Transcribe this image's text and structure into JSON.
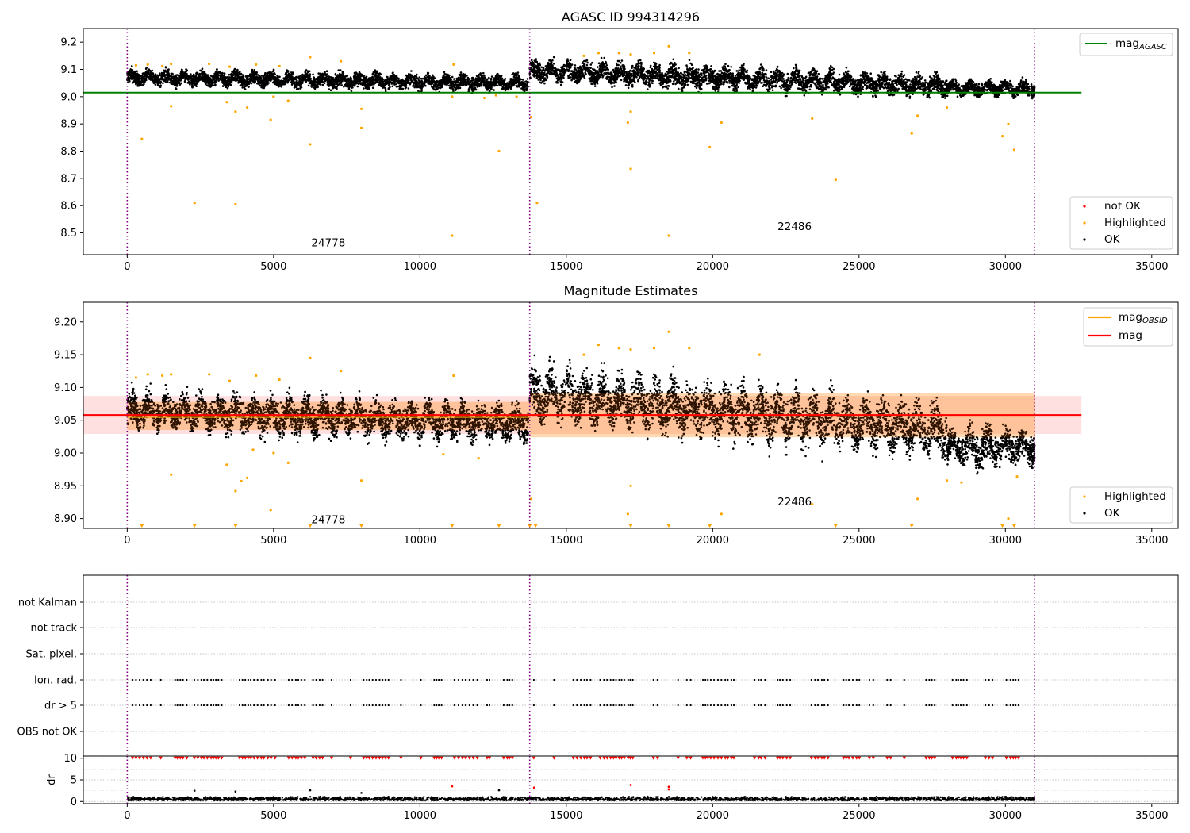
{
  "chart_data": [
    {
      "type": "scatter",
      "title": "AGASC ID 994314296",
      "xlim": [
        -1500,
        35900
      ],
      "ylim": [
        8.42,
        9.25
      ],
      "xticks": [
        0,
        5000,
        10000,
        15000,
        20000,
        25000,
        30000,
        35000
      ],
      "yticks": [
        8.5,
        8.6,
        8.7,
        8.8,
        8.9,
        9.0,
        9.1,
        9.2
      ],
      "ytick_labels": [
        "8.5",
        "8.6",
        "8.7",
        "8.8",
        "8.9",
        "9.0",
        "9.1",
        "9.2"
      ],
      "grid": false,
      "obs_boundaries": [
        0,
        13750,
        31000
      ],
      "obs_labels": [
        {
          "text": "24778",
          "x": 6870,
          "y": 8.45
        },
        {
          "text": "22486",
          "x": 22800,
          "y": 8.51
        }
      ],
      "reference_line": {
        "label": "mag_AGASC",
        "value": 9.015,
        "x_range": [
          -1500,
          32600
        ],
        "color": "#008000"
      },
      "obs_means": [],
      "mag_band": null,
      "ok_envelope": [
        {
          "x_range": [
            0,
            13700
          ],
          "center_start": 9.07,
          "center_end": 9.05,
          "half_width": 0.035
        },
        {
          "x_range": [
            13750,
            28000
          ],
          "center_start": 9.095,
          "center_end": 9.04,
          "half_width": 0.05
        },
        {
          "x_range": [
            28000,
            31000
          ],
          "center_start": 9.03,
          "center_end": 9.03,
          "half_width": 0.035
        }
      ],
      "highlighted_points": [
        [
          500,
          8.845
        ],
        [
          1500,
          8.965
        ],
        [
          2300,
          8.61
        ],
        [
          3400,
          8.98
        ],
        [
          3700,
          8.945
        ],
        [
          3700,
          8.605
        ],
        [
          4100,
          8.96
        ],
        [
          4900,
          8.915
        ],
        [
          5000,
          9.0
        ],
        [
          5500,
          8.985
        ],
        [
          6250,
          8.825
        ],
        [
          8000,
          8.955
        ],
        [
          8000,
          8.885
        ],
        [
          11100,
          8.49
        ],
        [
          11100,
          9.0
        ],
        [
          12700,
          8.8
        ],
        [
          13800,
          8.925
        ],
        [
          14000,
          8.61
        ],
        [
          17100,
          8.905
        ],
        [
          17200,
          8.945
        ],
        [
          17200,
          8.735
        ],
        [
          18500,
          8.49
        ],
        [
          19900,
          8.815
        ],
        [
          20300,
          8.905
        ],
        [
          23400,
          8.92
        ],
        [
          24200,
          8.695
        ],
        [
          26800,
          8.865
        ],
        [
          27000,
          8.93
        ],
        [
          28000,
          8.96
        ],
        [
          29900,
          8.855
        ],
        [
          30100,
          8.9
        ],
        [
          30300,
          8.805
        ],
        [
          300,
          9.115
        ],
        [
          700,
          9.118
        ],
        [
          1200,
          9.112
        ],
        [
          1500,
          9.12
        ],
        [
          2800,
          9.12
        ],
        [
          3500,
          9.11
        ],
        [
          4400,
          9.118
        ],
        [
          5200,
          9.112
        ],
        [
          6250,
          9.145
        ],
        [
          7300,
          9.13
        ],
        [
          11150,
          9.118
        ],
        [
          15600,
          9.15
        ],
        [
          16100,
          9.16
        ],
        [
          16800,
          9.16
        ],
        [
          17200,
          9.155
        ],
        [
          18000,
          9.16
        ],
        [
          18500,
          9.185
        ],
        [
          19200,
          9.16
        ],
        [
          12200,
          8.995
        ],
        [
          12600,
          9.005
        ],
        [
          13300,
          9.0
        ]
      ],
      "not_ok_points": [],
      "legends": [
        {
          "placement": "top-right",
          "items": [
            {
              "label": "mag_AGASC",
              "subscript": "AGASC",
              "kind": "line",
              "color": "#008000"
            }
          ]
        },
        {
          "placement": "bottom-right",
          "items": [
            {
              "label": "not OK",
              "kind": "marker",
              "color": "#ff0000"
            },
            {
              "label": "Highlighted",
              "kind": "marker",
              "color": "#ffa500"
            },
            {
              "label": "OK",
              "kind": "marker",
              "color": "#000000"
            }
          ]
        }
      ]
    },
    {
      "type": "scatter",
      "title": "Magnitude Estimates",
      "xlim": [
        -1500,
        35900
      ],
      "ylim": [
        8.885,
        9.23
      ],
      "xticks": [
        0,
        5000,
        10000,
        15000,
        20000,
        25000,
        30000,
        35000
      ],
      "yticks": [
        8.9,
        8.95,
        9.0,
        9.05,
        9.1,
        9.15,
        9.2
      ],
      "ytick_labels": [
        "8.90",
        "8.95",
        "9.00",
        "9.05",
        "9.10",
        "9.15",
        "9.20"
      ],
      "grid": false,
      "obs_boundaries": [
        0,
        13750,
        31000
      ],
      "obs_labels": [
        {
          "text": "24778",
          "x": 6870,
          "y": 8.893
        },
        {
          "text": "22486",
          "x": 22800,
          "y": 8.92
        }
      ],
      "reference_line": {
        "label": "mag",
        "value": 9.058,
        "x_range": [
          -1500,
          32600
        ],
        "color": "#ff0000"
      },
      "mag_band": {
        "low": 9.029,
        "high": 9.087,
        "x_range": [
          -1500,
          32600
        ],
        "color": "#ff0000"
      },
      "obs_means": [
        {
          "x_range": [
            0,
            13750
          ],
          "value": 9.055,
          "low": 9.035,
          "high": 9.078
        },
        {
          "x_range": [
            13750,
            31000
          ],
          "value": 9.058,
          "low": 9.024,
          "high": 9.092
        }
      ],
      "ok_envelope": [
        {
          "x_range": [
            0,
            13700
          ],
          "center_start": 9.065,
          "center_end": 9.045,
          "half_width": 0.035
        },
        {
          "x_range": [
            13750,
            28000
          ],
          "center_start": 9.09,
          "center_end": 9.035,
          "half_width": 0.05
        },
        {
          "x_range": [
            28000,
            31000
          ],
          "center_start": 9.01,
          "center_end": 9.01,
          "half_width": 0.035
        }
      ],
      "highlighted_points": [
        [
          1500,
          8.967
        ],
        [
          3400,
          8.982
        ],
        [
          3700,
          8.942
        ],
        [
          3900,
          8.957
        ],
        [
          4100,
          8.962
        ],
        [
          4300,
          9.005
        ],
        [
          4900,
          8.913
        ],
        [
          5000,
          9.0
        ],
        [
          5500,
          8.985
        ],
        [
          8000,
          8.958
        ],
        [
          10800,
          8.998
        ],
        [
          12000,
          8.992
        ],
        [
          13800,
          8.93
        ],
        [
          17200,
          8.95
        ],
        [
          17100,
          8.907
        ],
        [
          20300,
          8.907
        ],
        [
          23400,
          8.922
        ],
        [
          27000,
          8.93
        ],
        [
          28000,
          8.958
        ],
        [
          28500,
          8.955
        ],
        [
          30100,
          8.9
        ],
        [
          30400,
          8.964
        ],
        [
          300,
          9.115
        ],
        [
          700,
          9.12
        ],
        [
          1200,
          9.118
        ],
        [
          1500,
          9.12
        ],
        [
          2800,
          9.12
        ],
        [
          3500,
          9.11
        ],
        [
          4400,
          9.118
        ],
        [
          5200,
          9.112
        ],
        [
          6250,
          9.145
        ],
        [
          7300,
          9.125
        ],
        [
          11150,
          9.118
        ],
        [
          15600,
          9.15
        ],
        [
          16100,
          9.165
        ],
        [
          16800,
          9.16
        ],
        [
          17200,
          9.158
        ],
        [
          18000,
          9.16
        ],
        [
          18500,
          9.185
        ],
        [
          19200,
          9.16
        ],
        [
          21600,
          9.15
        ]
      ],
      "off_scale_points_x": [
        500,
        2300,
        3700,
        6250,
        8000,
        11100,
        12700,
        13750,
        13950,
        17200,
        18500,
        19900,
        24200,
        26800,
        29900,
        30300
      ],
      "not_ok_points": [],
      "legends": [
        {
          "placement": "top-right",
          "items": [
            {
              "label": "mag_OBSID",
              "subscript": "OBSID",
              "kind": "line",
              "color": "#ffa500"
            },
            {
              "label": "mag",
              "kind": "line",
              "color": "#ff0000"
            }
          ]
        },
        {
          "placement": "bottom-right",
          "items": [
            {
              "label": "Highlighted",
              "kind": "marker",
              "color": "#ffa500"
            },
            {
              "label": "OK",
              "kind": "marker",
              "color": "#000000"
            }
          ]
        }
      ]
    },
    {
      "type": "scatter",
      "title": "",
      "xlim": [
        -1500,
        35900
      ],
      "grid": true,
      "obs_boundaries": [
        0,
        13750,
        31000
      ],
      "flag_rows": [
        "not Kalman",
        "not track",
        "Sat. pixel.",
        "Ion. rad.",
        "dr > 5",
        "OBS not OK"
      ],
      "flagged_rows": [
        "Ion. rad.",
        "dr > 5"
      ]
    },
    {
      "type": "scatter",
      "title": "",
      "ylabel": "dr",
      "xlim": [
        -1500,
        35900
      ],
      "ylim": [
        -0.5,
        10.5
      ],
      "xticks": [
        0,
        5000,
        10000,
        15000,
        20000,
        25000,
        30000,
        35000
      ],
      "yticks": [
        0,
        5,
        10
      ],
      "ytick_labels": [
        "0",
        "5",
        "10"
      ],
      "grid": true,
      "obs_boundaries": [
        0,
        13750,
        31000
      ],
      "dr_cap": 10,
      "dr_outliers_red": [
        [
          11100,
          3.5
        ],
        [
          13900,
          3.2
        ],
        [
          17200,
          3.8
        ],
        [
          18500,
          3.4
        ],
        [
          18500,
          2.8
        ]
      ],
      "dr_outliers_black": [
        [
          2300,
          2.5
        ],
        [
          3700,
          2.3
        ],
        [
          6250,
          2.6
        ],
        [
          8000,
          2.0
        ],
        [
          12700,
          2.6
        ]
      ]
    }
  ]
}
